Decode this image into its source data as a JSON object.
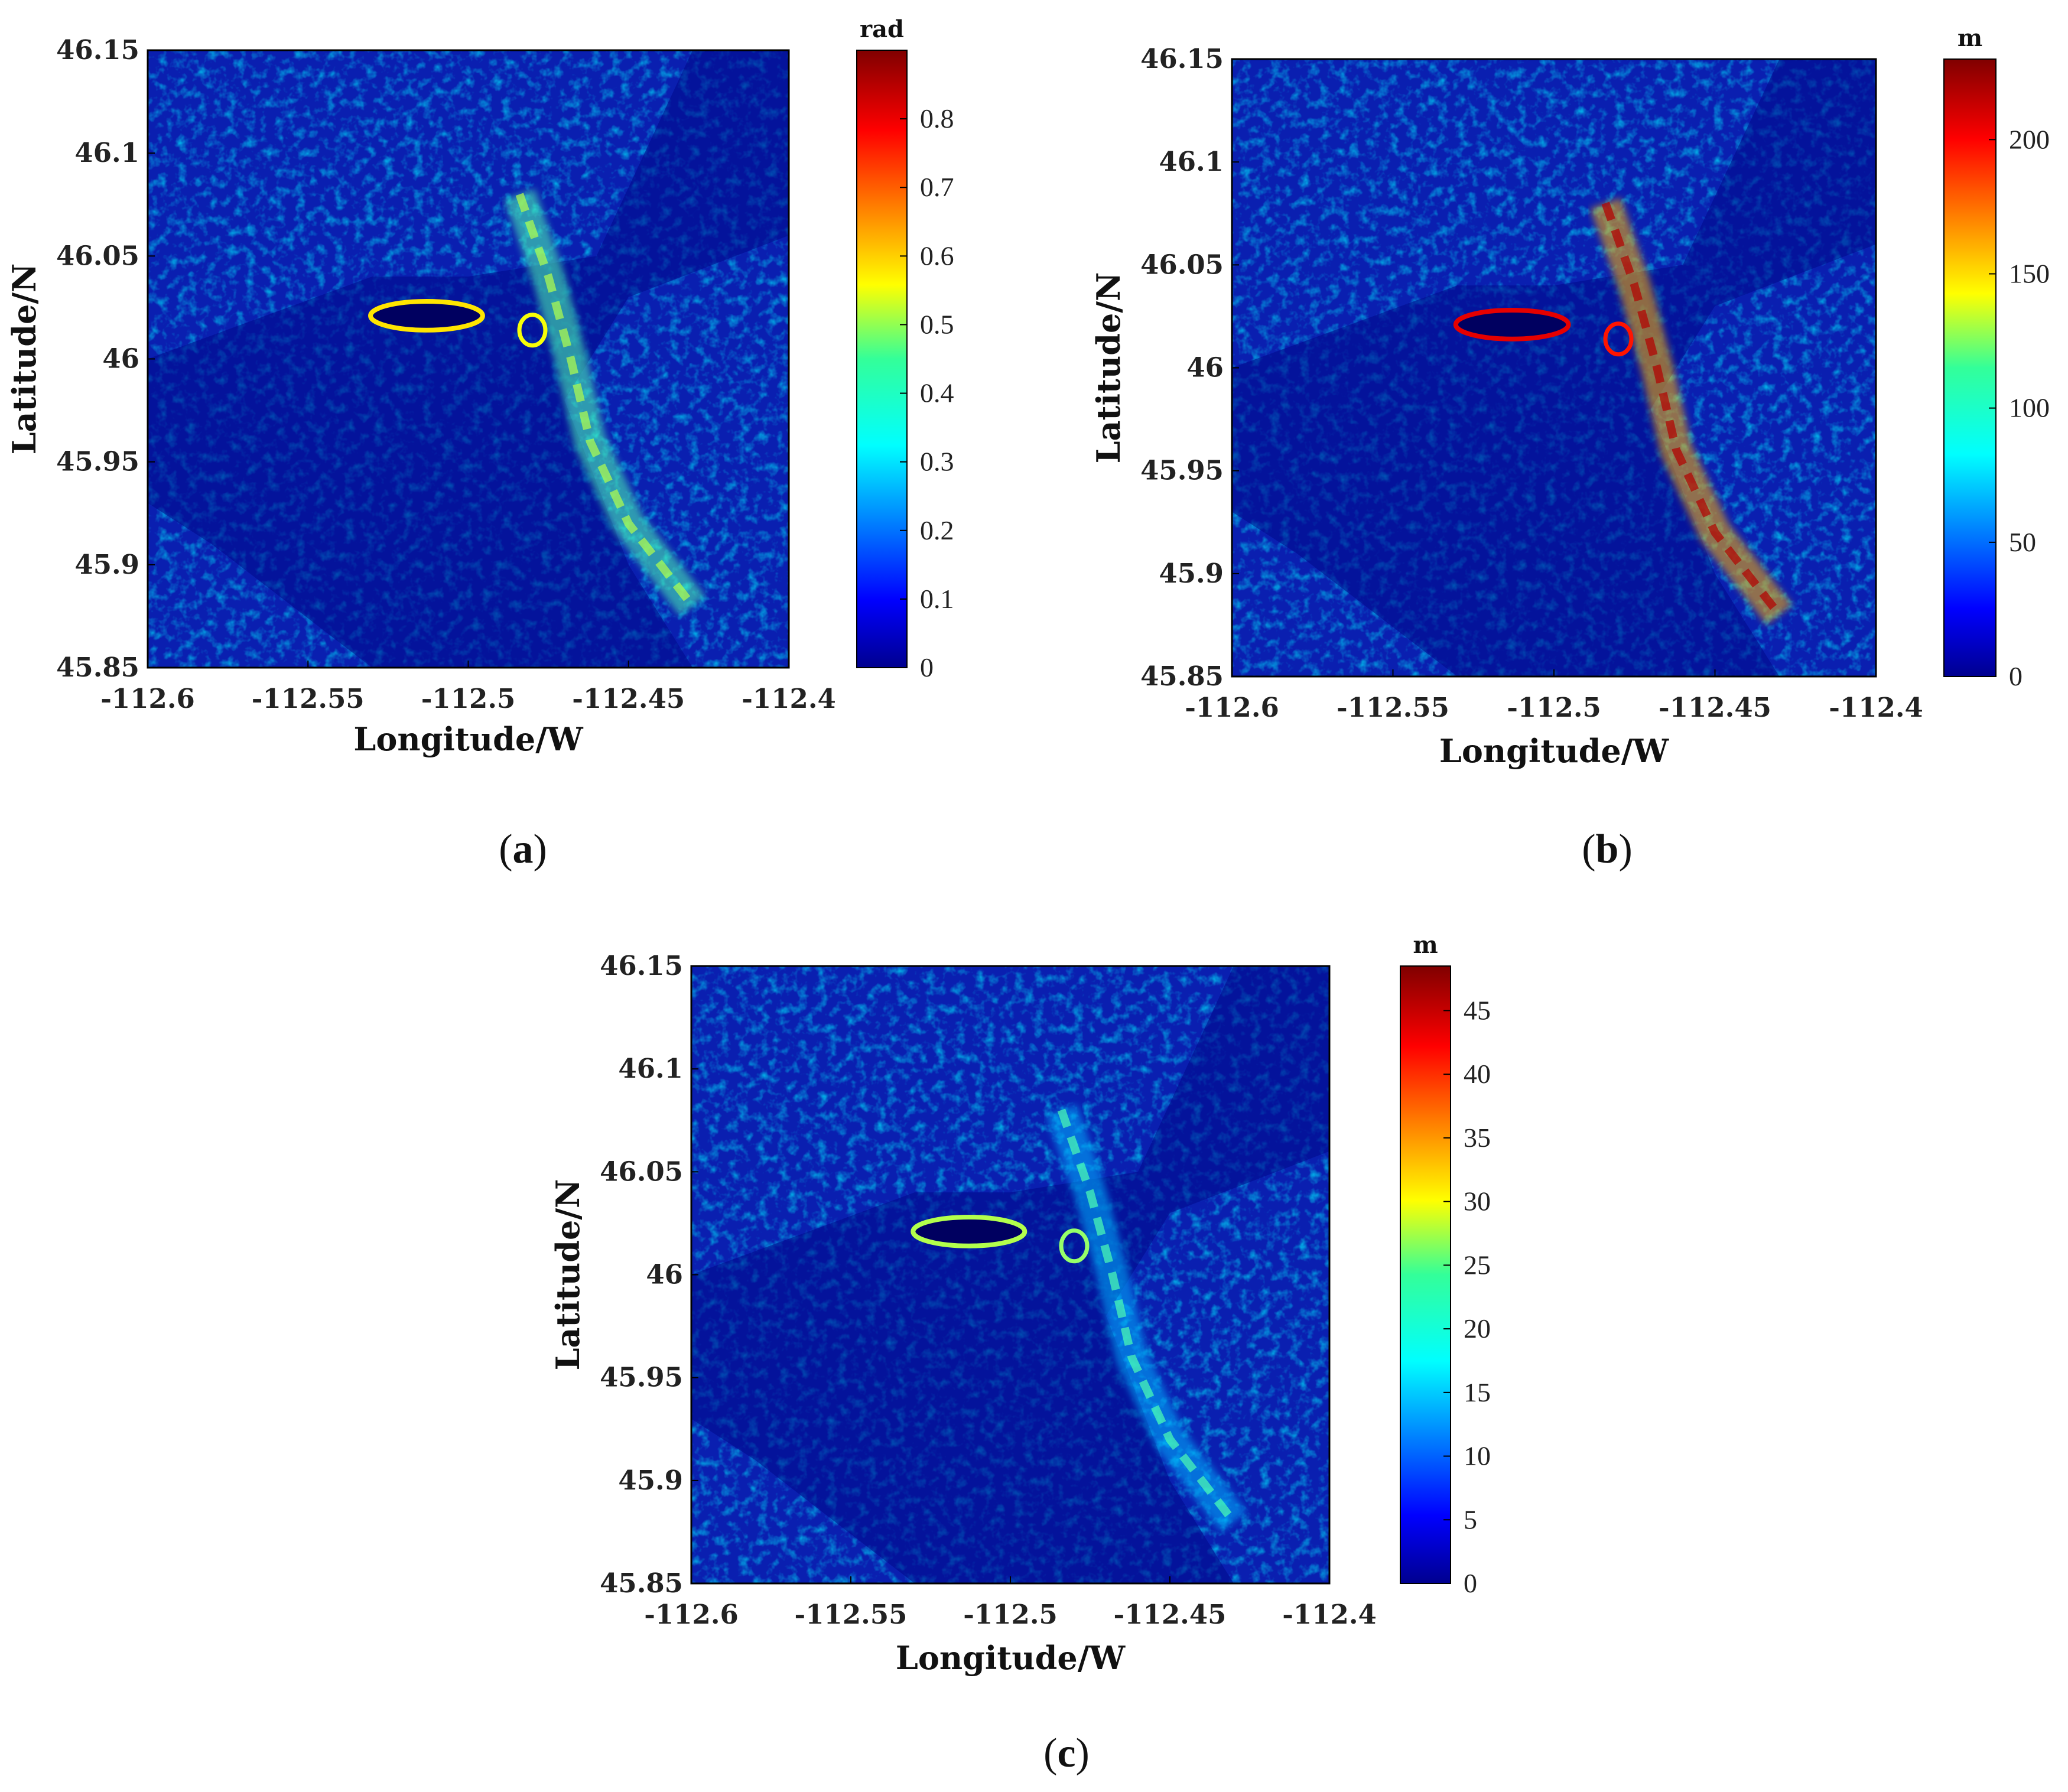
{
  "chart_data": [
    {
      "type": "heatmap",
      "panel_label": "a",
      "xlabel": "Longitude/W",
      "ylabel": "Latitude/N",
      "xlim": [
        -112.6,
        -112.4
      ],
      "ylim": [
        45.85,
        46.15
      ],
      "xticks": [
        "-112.6",
        "-112.55",
        "-112.5",
        "-112.45",
        "-112.4"
      ],
      "yticks": [
        "45.85",
        "45.9",
        "45.95",
        "46",
        "46.05",
        "46.1",
        "46.15"
      ],
      "colorbar_unit": "rad",
      "colorbar_range": [
        0,
        0.9
      ],
      "colorbar_ticks": [
        "0",
        "0.1",
        "0.2",
        "0.3",
        "0.4",
        "0.5",
        "0.6",
        "0.7",
        "0.8"
      ],
      "colormap": "jet"
    },
    {
      "type": "heatmap",
      "panel_label": "b",
      "xlabel": "Longitude/W",
      "ylabel": "Latitude/N",
      "xlim": [
        -112.6,
        -112.4
      ],
      "ylim": [
        45.85,
        46.15
      ],
      "xticks": [
        "-112.6",
        "-112.55",
        "-112.5",
        "-112.45",
        "-112.4"
      ],
      "yticks": [
        "45.85",
        "45.9",
        "45.95",
        "46",
        "46.05",
        "46.1",
        "46.15"
      ],
      "colorbar_unit": "m",
      "colorbar_range": [
        0,
        230
      ],
      "colorbar_ticks": [
        "0",
        "50",
        "100",
        "150",
        "200"
      ],
      "colormap": "jet"
    },
    {
      "type": "heatmap",
      "panel_label": "c",
      "xlabel": "Longitude/W",
      "ylabel": "Latitude/N",
      "xlim": [
        -112.6,
        -112.4
      ],
      "ylim": [
        45.85,
        46.15
      ],
      "xticks": [
        "-112.6",
        "-112.55",
        "-112.5",
        "-112.45",
        "-112.4"
      ],
      "yticks": [
        "45.85",
        "45.9",
        "45.95",
        "46",
        "46.05",
        "46.1",
        "46.15"
      ],
      "colorbar_unit": "m",
      "colorbar_range": [
        0,
        48.5
      ],
      "colorbar_ticks": [
        "0",
        "5",
        "10",
        "15",
        "20",
        "25",
        "30",
        "35",
        "40",
        "45"
      ],
      "colormap": "jet"
    }
  ]
}
